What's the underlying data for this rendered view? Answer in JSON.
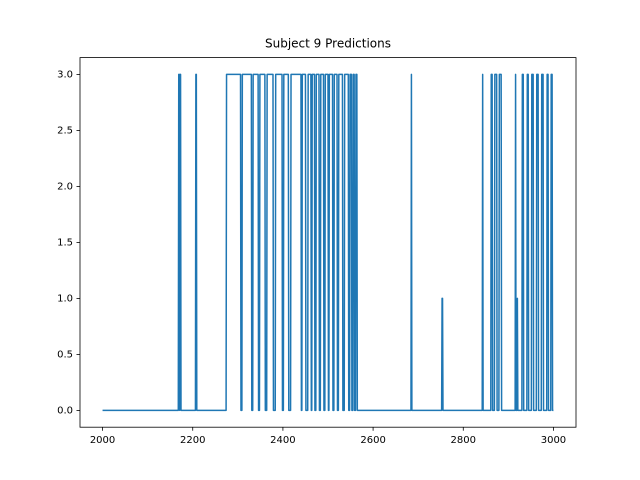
{
  "chart_data": {
    "type": "line",
    "title": "Subject 9 Predictions",
    "x": [
      2000,
      2168,
      2169,
      2170,
      2171,
      2172,
      2173,
      2174,
      2206,
      2207,
      2208,
      2209,
      2274,
      2275,
      2306,
      2307,
      2309,
      2310,
      2330,
      2331,
      2333,
      2334,
      2345,
      2346,
      2348,
      2349,
      2360,
      2361,
      2364,
      2365,
      2378,
      2379,
      2383,
      2384,
      2398,
      2399,
      2401,
      2402,
      2412,
      2413,
      2417,
      2418,
      2440,
      2441,
      2442,
      2443,
      2450,
      2451,
      2455,
      2456,
      2462,
      2463,
      2464,
      2465,
      2470,
      2471,
      2473,
      2474,
      2480,
      2481,
      2483,
      2484,
      2490,
      2491,
      2493,
      2494,
      2500,
      2501,
      2502,
      2503,
      2510,
      2511,
      2513,
      2514,
      2520,
      2521,
      2523,
      2524,
      2532,
      2533,
      2536,
      2537,
      2545,
      2546,
      2548,
      2549,
      2552,
      2553,
      2555,
      2556,
      2558,
      2559,
      2561,
      2562,
      2564,
      2565,
      2684,
      2685,
      2686,
      2752,
      2753,
      2754,
      2755,
      2842,
      2843,
      2844,
      2861,
      2862,
      2864,
      2865,
      2869,
      2870,
      2874,
      2875,
      2879,
      2880,
      2884,
      2885,
      2915,
      2916,
      2917,
      2919,
      2920,
      2921,
      2930,
      2931,
      2933,
      2934,
      2941,
      2942,
      2944,
      2945,
      2951,
      2952,
      2955,
      2956,
      2962,
      2963,
      2966,
      2967,
      2973,
      2974,
      2977,
      2978,
      2985,
      2986,
      2988,
      2989,
      2994,
      2995,
      2997,
      2998,
      3000
    ],
    "series": [
      {
        "color": "#1f77b4",
        "values": [
          0,
          0,
          3,
          3,
          0,
          3,
          3,
          0,
          0,
          3,
          3,
          0,
          0,
          3,
          3,
          0,
          0,
          3,
          3,
          0,
          0,
          3,
          3,
          0,
          0,
          3,
          3,
          0,
          0,
          3,
          3,
          0,
          0,
          3,
          3,
          0,
          0,
          3,
          3,
          0,
          0,
          3,
          3,
          0,
          0,
          3,
          3,
          0,
          0,
          3,
          3,
          0,
          0,
          3,
          3,
          0,
          0,
          3,
          3,
          0,
          0,
          3,
          3,
          0,
          0,
          3,
          3,
          0,
          0,
          3,
          3,
          0,
          0,
          3,
          3,
          0,
          0,
          3,
          3,
          0,
          0,
          3,
          3,
          0,
          0,
          3,
          3,
          0,
          0,
          3,
          3,
          0,
          0,
          3,
          3,
          0,
          0,
          3,
          0,
          0,
          1,
          1,
          0,
          0,
          3,
          0,
          0,
          3,
          3,
          0,
          0,
          3,
          3,
          0,
          0,
          3,
          3,
          0,
          0,
          3,
          0,
          0,
          1,
          0,
          0,
          3,
          3,
          0,
          0,
          3,
          3,
          0,
          0,
          3,
          3,
          0,
          0,
          3,
          3,
          0,
          0,
          3,
          3,
          0,
          0,
          3,
          3,
          0,
          0,
          3,
          3,
          0,
          0
        ]
      }
    ],
    "xlim": [
      1950,
      3050
    ],
    "xticks": [
      2000,
      2200,
      2400,
      2600,
      2800,
      3000
    ],
    "ylim": [
      -0.15,
      3.15
    ],
    "yticks": [
      {
        "value": 0,
        "label": "0.0"
      },
      0.5,
      {
        "value": 1,
        "label": "1.0"
      },
      1.5,
      {
        "value": 2,
        "label": "2.0"
      },
      2.5,
      {
        "value": 3,
        "label": "3.0"
      }
    ]
  }
}
